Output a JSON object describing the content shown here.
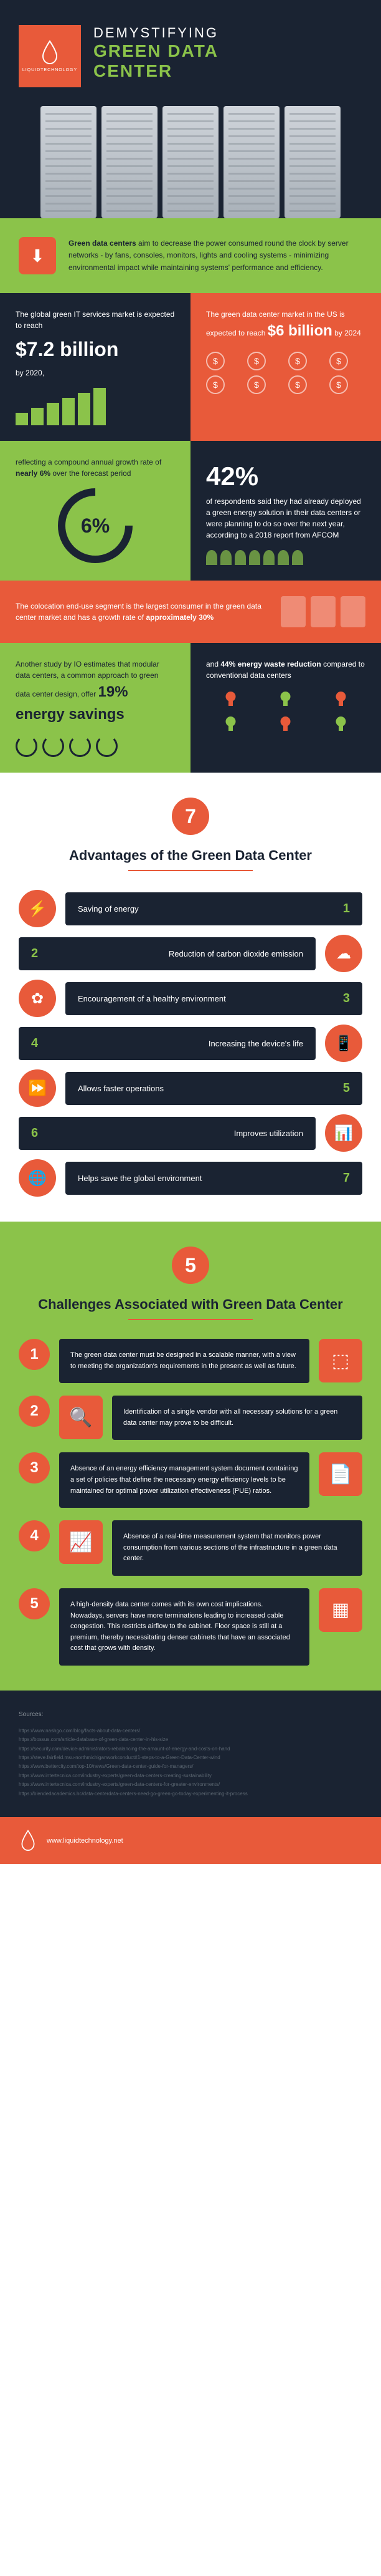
{
  "header": {
    "logo_label": "LIQUIDTECHNOLOGY",
    "title_line1": "DEMYSTIFYING",
    "title_line2": "GREEN DATA",
    "title_line3": "CENTER"
  },
  "intro": {
    "icon_glyph": "⬇",
    "bold_lead": "Green data centers",
    "body": " aim to decrease the power consumed round the clock by server networks - by fans, consoles, monitors, lights and cooling systems - minimizing environmental impact while maintaining systems' performance and efficiency."
  },
  "stats": {
    "s7b": {
      "pre": "The global green IT services market is expected to reach",
      "value": "$7.2 billion",
      "post": "by 2020,",
      "bar_heights": [
        20,
        28,
        36,
        44,
        52,
        60
      ]
    },
    "s6b": {
      "pre": "The green data center market in the US is expected to reach",
      "value": "$6 billion",
      "post": " by 2024",
      "coin_glyph": "$",
      "coin_count": 8
    },
    "s6pct": {
      "text": "reflecting a compound annual growth rate of ",
      "bold": "nearly 6%",
      "text2": " over the forecast period",
      "ring_value": "6%"
    },
    "s42": {
      "value": "42%",
      "text": "of respondents said they had already deployed a green energy solution in their data centers or were planning to do so over the next year, according to a 2018 report from AFCOM",
      "people_count": 7
    },
    "s30": {
      "text": "The colocation end-use segment is the largest consumer in the green data center market and has a growth rate of ",
      "bold": "approximately 30%",
      "bldg_count": 3
    },
    "s19": {
      "text": "Another study by IO estimates that modular data centers, a common approach to green data center design, offer ",
      "value": "19% energy savings",
      "dial_count": 4
    },
    "s44": {
      "text1": "and ",
      "bold": "44% energy waste reduction",
      "text2": " compared to conventional data centers"
    }
  },
  "advantages": {
    "badge_number": "7",
    "title": "Advantages of the Green Data Center",
    "items": [
      {
        "num": "1",
        "label": "Saving of energy",
        "icon": "⚡",
        "side": "left"
      },
      {
        "num": "2",
        "label": "Reduction of carbon dioxide emission",
        "icon": "☁",
        "side": "right"
      },
      {
        "num": "3",
        "label": "Encouragement of a healthy environment",
        "icon": "✿",
        "side": "left"
      },
      {
        "num": "4",
        "label": "Increasing the device's life",
        "icon": "📱",
        "side": "right"
      },
      {
        "num": "5",
        "label": "Allows faster operations",
        "icon": "⏩",
        "side": "left"
      },
      {
        "num": "6",
        "label": "Improves utilization",
        "icon": "📊",
        "side": "right"
      },
      {
        "num": "7",
        "label": "Helps save the global environment",
        "icon": "🌐",
        "side": "left"
      }
    ]
  },
  "challenges": {
    "badge_number": "5",
    "title": "Challenges Associated with Green Data Center",
    "items": [
      {
        "num": "1",
        "text": "The green data center must be designed in a scalable manner, with a view to meeting the organization's requirements in the present as well as future.",
        "icon": "⬚",
        "side": "right"
      },
      {
        "num": "2",
        "text": "Identification of a single vendor with all necessary solutions for a green data center may prove to be difficult.",
        "icon": "🔍",
        "side": "left"
      },
      {
        "num": "3",
        "text": "Absence of an energy efficiency management system document containing a set of policies that define the necessary energy efficiency levels to be maintained for optimal power utilization effectiveness (PUE) ratios.",
        "icon": "📄",
        "side": "right"
      },
      {
        "num": "4",
        "text": "Absence of a real-time measurement system that monitors power consumption from various sections of the infrastructure in a green data center.",
        "icon": "📈",
        "side": "left"
      },
      {
        "num": "5",
        "text": "A high-density data center comes with its own cost implications. Nowadays, servers have more terminations leading to increased cable congestion. This restricts airflow to the cabinet. Floor space is still at a premium, thereby necessitating denser cabinets that have an associated cost that grows with density.",
        "icon": "▦",
        "side": "right"
      }
    ]
  },
  "sources": {
    "title": "Sources:",
    "links": [
      "https://www.nashgo.com/blog/facts-about-data-centers/",
      "https://bossus.com/article-database-of-green-data-center-in-his-size",
      "https://security.com/device-administrators-rebalancing-the-amount-of-energy-and-costs-on-hand",
      "https://steve.fairfield.msu-northmichiganworkconduct#1-steps-to-a-Green-Data-Center-wind",
      "https://www.bettercity.com/top-10/news/Green-data-center-guide-for-managers/",
      "https://www.intertecnica.com/industry-experts/green-data-centers-creating-sustainability",
      "https://www.intertecnica.com/industry-experts/green-data-centers-for-greater-environments/",
      "https://blendedacademics.hc/data-centerdata-centers-need-go-green-go-today-experimenting-it-process"
    ]
  },
  "footer": {
    "url": "www.liquidtechnology.net"
  },
  "colors": {
    "dark": "#1a2332",
    "orange": "#e85a3a",
    "green": "#8bc34a"
  }
}
